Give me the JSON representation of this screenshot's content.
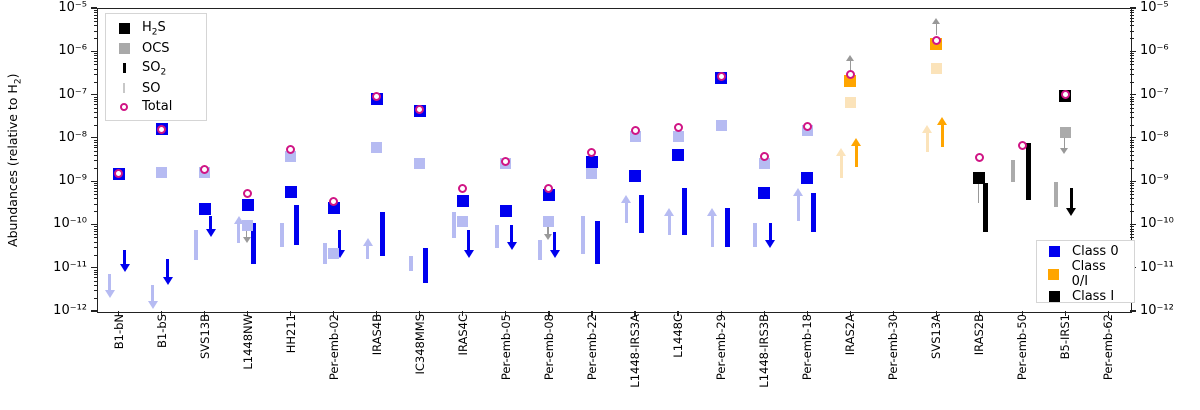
{
  "ylabel": "Abundances (relative to H2)",
  "ylabel_html_parts": {
    "pre": "Abundances (relative to H",
    "sub": "2",
    "post": ")"
  },
  "legend_species": {
    "items": [
      {
        "label": "H2S",
        "label_pre": "H",
        "label_sub": "2",
        "label_post": "S",
        "marker": "square",
        "color": "#000000"
      },
      {
        "label": "OCS",
        "label_pre": "OCS",
        "label_sub": "",
        "label_post": "",
        "marker": "square",
        "color": "#a9a9a9"
      },
      {
        "label": "SO2",
        "label_pre": "SO",
        "label_sub": "2",
        "label_post": "",
        "marker": "bar",
        "color": "#000000"
      },
      {
        "label": "SO",
        "label_pre": "SO",
        "label_sub": "",
        "label_post": "",
        "marker": "bar-thin",
        "color": "#c8c8c8"
      },
      {
        "label": "Total",
        "label_pre": "Total",
        "label_sub": "",
        "label_post": "",
        "marker": "ring",
        "color": "#d01585"
      }
    ]
  },
  "legend_classes": {
    "items": [
      {
        "label": "Class 0",
        "color": "#0000ee"
      },
      {
        "label": "Class 0/I",
        "color": "#ffa500"
      },
      {
        "label": "Class I",
        "color": "#000000"
      }
    ]
  },
  "chart_data": {
    "type": "scatter",
    "yscale": "log",
    "ylim": [
      1e-12,
      1e-05
    ],
    "ytick_exponents": [
      -5,
      -6,
      -7,
      -8,
      -9,
      -10,
      -11,
      -12
    ],
    "grid": false,
    "legend_positions": {
      "species": "upper-left",
      "classes": "lower-right"
    },
    "palette": {
      "0": {
        "solid": "#0000ee",
        "light": "#b6bbf2"
      },
      "0/I": {
        "solid": "#ffa500",
        "light": "#fbe3ba"
      },
      "I": {
        "solid": "#000000",
        "light": "#ababab"
      },
      "gray": "#999999",
      "total_ring": "#d01585"
    },
    "sources": [
      {
        "name": "B1-bN",
        "cls": "0",
        "markers": [
          {
            "sp": "H2S",
            "t": "sq",
            "v": 1.5e-09
          },
          {
            "sp": "Total",
            "t": "circ",
            "v": 1.5e-09
          },
          {
            "sp": "SO2",
            "t": "arr",
            "dir": "down",
            "from": 2.6e-11,
            "to": 8e-12
          },
          {
            "sp": "SO",
            "t": "arr",
            "dir": "down",
            "from": 7e-12,
            "to": 2e-12
          }
        ]
      },
      {
        "name": "B1-bS",
        "cls": "0",
        "markers": [
          {
            "sp": "H2S",
            "t": "sq",
            "v": 1.6e-08
          },
          {
            "sp": "Total",
            "t": "circ",
            "v": 1.6e-08
          },
          {
            "sp": "OCS",
            "t": "sq",
            "v": 1.6e-09
          },
          {
            "sp": "SO2",
            "t": "arr",
            "dir": "down",
            "from": 1.6e-11,
            "to": 4e-12
          },
          {
            "sp": "SO",
            "t": "arr",
            "dir": "down",
            "from": 4e-12,
            "to": 1.1e-12
          }
        ]
      },
      {
        "name": "SVS13B",
        "cls": "0",
        "markers": [
          {
            "sp": "Total",
            "t": "circ",
            "v": 1.9e-09
          },
          {
            "sp": "OCS",
            "t": "sq",
            "v": 1.6e-09
          },
          {
            "sp": "H2S",
            "t": "sq",
            "v": 2.3e-10
          },
          {
            "sp": "SO2",
            "t": "arr",
            "dir": "down",
            "from": 1.6e-10,
            "to": 5e-11
          },
          {
            "sp": "SO",
            "t": "bar",
            "hi": 7.5e-11,
            "lo": 1.5e-11
          }
        ]
      },
      {
        "name": "L1448NW",
        "cls": "0",
        "markers": [
          {
            "sp": "Total",
            "t": "circ",
            "v": 5.3e-10
          },
          {
            "sp": "H2S",
            "t": "sq",
            "v": 2.8e-10
          },
          {
            "sp": "OCS",
            "t": "sq",
            "v": 9.5e-11
          },
          {
            "sp": "OCS",
            "t": "arr",
            "dir": "down",
            "gray": true,
            "from": 9.5e-11,
            "to": 3.7e-11
          },
          {
            "sp": "SO",
            "t": "arr",
            "dir": "up",
            "from": 3.7e-11,
            "to": 1.6e-10
          },
          {
            "sp": "SO2",
            "t": "bar",
            "hi": 1.1e-10,
            "lo": 1.2e-11
          }
        ]
      },
      {
        "name": "HH211",
        "cls": "0",
        "markers": [
          {
            "sp": "Total",
            "t": "circ",
            "v": 5.3e-09
          },
          {
            "sp": "OCS",
            "t": "sq",
            "v": 3.8e-09
          },
          {
            "sp": "H2S",
            "t": "sq",
            "v": 5.6e-10
          },
          {
            "sp": "SO2",
            "t": "bar",
            "hi": 2.8e-10,
            "lo": 3.4e-11
          },
          {
            "sp": "SO",
            "t": "bar",
            "hi": 1.1e-10,
            "lo": 3e-11
          }
        ]
      },
      {
        "name": "Per-emb-02",
        "cls": "0",
        "markers": [
          {
            "sp": "Total",
            "t": "circ",
            "v": 3.3e-10
          },
          {
            "sp": "H2S",
            "t": "sq",
            "v": 2.4e-10
          },
          {
            "sp": "OCS",
            "t": "sq",
            "v": 2.1e-11
          },
          {
            "sp": "SO2",
            "t": "arr",
            "dir": "down",
            "from": 7.3e-11,
            "to": 1.7e-11
          },
          {
            "sp": "SO",
            "t": "bar",
            "hi": 3.7e-11,
            "lo": 1.2e-11
          }
        ]
      },
      {
        "name": "IRAS4B",
        "cls": "0",
        "markers": [
          {
            "sp": "H2S",
            "t": "sq",
            "v": 8e-08
          },
          {
            "sp": "Total",
            "t": "circ",
            "v": 9e-08
          },
          {
            "sp": "OCS",
            "t": "sq",
            "v": 5.9e-09
          },
          {
            "sp": "SO2",
            "t": "bar",
            "hi": 1.9e-10,
            "lo": 1.9e-11
          },
          {
            "sp": "SO",
            "t": "arr",
            "dir": "up",
            "from": 1.6e-11,
            "to": 4.8e-11
          }
        ]
      },
      {
        "name": "IC348MMS",
        "cls": "0",
        "markers": [
          {
            "sp": "H2S",
            "t": "sq",
            "v": 4.2e-08
          },
          {
            "sp": "Total",
            "t": "circ",
            "v": 4.5e-08
          },
          {
            "sp": "OCS",
            "t": "sq",
            "v": 2.6e-09
          },
          {
            "sp": "SO",
            "t": "bar",
            "hi": 1.9e-11,
            "lo": 8.5e-12
          },
          {
            "sp": "SO2",
            "t": "bar",
            "hi": 2.9e-11,
            "lo": 4.4e-12
          }
        ]
      },
      {
        "name": "IRAS4C",
        "cls": "0",
        "markers": [
          {
            "sp": "Total",
            "t": "circ",
            "v": 6.9e-10
          },
          {
            "sp": "H2S",
            "t": "sq",
            "v": 3.5e-10
          },
          {
            "sp": "OCS",
            "t": "sq",
            "v": 1.2e-10
          },
          {
            "sp": "SO",
            "t": "bar",
            "hi": 1.9e-10,
            "lo": 4.8e-11
          },
          {
            "sp": "SO2",
            "t": "arr",
            "dir": "down",
            "from": 7.3e-11,
            "to": 1.7e-11
          }
        ]
      },
      {
        "name": "Per-emb-05",
        "cls": "0",
        "markers": [
          {
            "sp": "Total",
            "t": "circ",
            "v": 2.9e-09
          },
          {
            "sp": "OCS",
            "t": "sq",
            "v": 2.5e-09
          },
          {
            "sp": "H2S",
            "t": "sq",
            "v": 2e-10
          },
          {
            "sp": "SO",
            "t": "bar",
            "hi": 9.5e-11,
            "lo": 2.8e-11
          },
          {
            "sp": "SO2",
            "t": "arr",
            "dir": "down",
            "from": 9.5e-11,
            "to": 2.5e-11
          }
        ]
      },
      {
        "name": "Per-emb-08",
        "cls": "0",
        "markers": [
          {
            "sp": "Total",
            "t": "circ",
            "v": 6.9e-10
          },
          {
            "sp": "H2S",
            "t": "sq",
            "v": 4.7e-10
          },
          {
            "sp": "OCS",
            "t": "sq",
            "v": 1.2e-10
          },
          {
            "sp": "OCS",
            "t": "arr",
            "dir": "down",
            "gray": true,
            "from": 1.2e-10,
            "to": 4.3e-11
          },
          {
            "sp": "SO",
            "t": "bar",
            "hi": 4.3e-11,
            "lo": 1.5e-11
          },
          {
            "sp": "SO2",
            "t": "arr",
            "dir": "down",
            "from": 6.6e-11,
            "to": 1.7e-11
          }
        ]
      },
      {
        "name": "Per-emb-22",
        "cls": "0",
        "markers": [
          {
            "sp": "Total",
            "t": "circ",
            "v": 4.5e-09
          },
          {
            "sp": "H2S",
            "t": "sq",
            "v": 2.8e-09
          },
          {
            "sp": "OCS",
            "t": "sq",
            "v": 1.5e-09
          },
          {
            "sp": "SO",
            "t": "bar",
            "hi": 1.6e-10,
            "lo": 2.1e-11
          },
          {
            "sp": "SO2",
            "t": "bar",
            "hi": 1.2e-10,
            "lo": 1.2e-11
          }
        ]
      },
      {
        "name": "L1448-IRS3A",
        "cls": "0",
        "markers": [
          {
            "sp": "Total",
            "t": "circ",
            "v": 1.5e-08
          },
          {
            "sp": "OCS",
            "t": "sq",
            "v": 1.1e-08
          },
          {
            "sp": "H2S",
            "t": "sq",
            "v": 1.3e-09
          },
          {
            "sp": "SO",
            "t": "arr",
            "dir": "up",
            "from": 1.1e-10,
            "to": 4.7e-10
          },
          {
            "sp": "SO2",
            "t": "bar",
            "hi": 4.7e-10,
            "lo": 6.3e-11
          }
        ]
      },
      {
        "name": "L1448C",
        "cls": "0",
        "markers": [
          {
            "sp": "Total",
            "t": "circ",
            "v": 1.7e-08
          },
          {
            "sp": "OCS",
            "t": "sq",
            "v": 1.1e-08
          },
          {
            "sp": "H2S",
            "t": "sq",
            "v": 4e-09
          },
          {
            "sp": "SO",
            "t": "arr",
            "dir": "up",
            "from": 5.6e-11,
            "to": 2.4e-10
          },
          {
            "sp": "SO2",
            "t": "bar",
            "hi": 6.9e-10,
            "lo": 5.6e-11
          }
        ]
      },
      {
        "name": "Per-emb-29",
        "cls": "0",
        "markers": [
          {
            "sp": "H2S",
            "t": "sq",
            "v": 2.4e-07
          },
          {
            "sp": "Total",
            "t": "circ",
            "v": 2.6e-07
          },
          {
            "sp": "OCS",
            "t": "sq",
            "v": 1.9e-08
          },
          {
            "sp": "SO",
            "t": "arr",
            "dir": "up",
            "from": 3e-11,
            "to": 2.4e-10
          },
          {
            "sp": "SO2",
            "t": "bar",
            "hi": 2.4e-10,
            "lo": 3e-11
          }
        ]
      },
      {
        "name": "L1448-IRS3B",
        "cls": "0",
        "markers": [
          {
            "sp": "Total",
            "t": "circ",
            "v": 3.8e-09
          },
          {
            "sp": "OCS",
            "t": "sq",
            "v": 2.6e-09
          },
          {
            "sp": "H2S",
            "t": "sq",
            "v": 5.3e-10
          },
          {
            "sp": "SO",
            "t": "bar",
            "hi": 1.1e-10,
            "lo": 3e-11
          },
          {
            "sp": "SO2",
            "t": "arr",
            "dir": "down",
            "from": 1.1e-10,
            "to": 2.8e-11
          }
        ]
      },
      {
        "name": "Per-emb-18",
        "cls": "0",
        "markers": [
          {
            "sp": "Total",
            "t": "circ",
            "v": 1.8e-08
          },
          {
            "sp": "OCS",
            "t": "sq",
            "v": 1.5e-08
          },
          {
            "sp": "H2S",
            "t": "sq",
            "v": 1.2e-09
          },
          {
            "sp": "SO",
            "t": "arr",
            "dir": "up",
            "from": 1.2e-10,
            "to": 6.9e-10
          },
          {
            "sp": "SO2",
            "t": "bar",
            "hi": 5.3e-10,
            "lo": 6.6e-11
          }
        ]
      },
      {
        "name": "IRAS2A",
        "cls": "0/I",
        "markers": [
          {
            "sp": "Total",
            "t": "arr",
            "dir": "up",
            "gray": true,
            "from": 3.2e-07,
            "to": 8.3e-07
          },
          {
            "sp": "Total",
            "t": "circ",
            "v": 2.9e-07
          },
          {
            "sp": "H2S",
            "t": "sq",
            "v": 2.1e-07
          },
          {
            "sp": "OCS",
            "t": "sq",
            "v": 6.6e-08
          },
          {
            "sp": "SO",
            "t": "arr",
            "dir": "up",
            "from": 1.2e-09,
            "to": 5.9e-09
          },
          {
            "sp": "SO2",
            "t": "arr",
            "dir": "up",
            "from": 2.1e-09,
            "to": 9.9e-09
          }
        ]
      },
      {
        "name": "Per-emb-30",
        "cls": "0",
        "markers": []
      },
      {
        "name": "SVS13A",
        "cls": "0/I",
        "markers": [
          {
            "sp": "Total",
            "t": "arr",
            "dir": "up",
            "gray": true,
            "from": 2.4e-06,
            "to": 5.9e-06
          },
          {
            "sp": "Total",
            "t": "circ",
            "v": 1.8e-06
          },
          {
            "sp": "H2S",
            "t": "sq",
            "v": 1.5e-06
          },
          {
            "sp": "OCS",
            "t": "sq",
            "v": 3.9e-07
          },
          {
            "sp": "SO",
            "t": "arr",
            "dir": "up",
            "from": 4.7e-09,
            "to": 2e-08
          },
          {
            "sp": "SO2",
            "t": "arr",
            "dir": "up",
            "from": 6.1e-09,
            "to": 3e-08
          }
        ]
      },
      {
        "name": "IRAS2B",
        "cls": "I",
        "markers": [
          {
            "sp": "Total",
            "t": "circ",
            "v": 3.6e-09
          },
          {
            "sp": "H2S",
            "t": "sq",
            "v": 1.2e-09
          },
          {
            "sp": "SO",
            "t": "arr",
            "dir": "up",
            "gray": true,
            "from": 3.2e-10,
            "to": 1.2e-09
          },
          {
            "sp": "SO2",
            "t": "bar",
            "hi": 9e-10,
            "lo": 6.6e-11
          }
        ]
      },
      {
        "name": "Per-emb-50",
        "cls": "I",
        "markers": [
          {
            "sp": "Total",
            "t": "circ",
            "v": 6.6e-09
          },
          {
            "sp": "SO2",
            "t": "bar",
            "hi": 7.7e-09,
            "lo": 3.6e-10
          },
          {
            "sp": "SO",
            "t": "bar",
            "hi": 3e-09,
            "lo": 9.5e-10
          }
        ]
      },
      {
        "name": "B5-IRS1",
        "cls": "I",
        "markers": [
          {
            "sp": "H2S",
            "t": "sq",
            "v": 9.5e-08
          },
          {
            "sp": "Total",
            "t": "circ",
            "v": 1e-07
          },
          {
            "sp": "OCS",
            "t": "sq",
            "v": 1.3e-08
          },
          {
            "sp": "OCS",
            "t": "arr",
            "dir": "down",
            "gray": true,
            "from": 1.3e-08,
            "to": 4.3e-09
          },
          {
            "sp": "SO",
            "t": "bar",
            "hi": 9.5e-10,
            "lo": 2.5e-10
          },
          {
            "sp": "SO2",
            "t": "arr",
            "dir": "down",
            "from": 6.9e-10,
            "to": 1.6e-10
          }
        ]
      },
      {
        "name": "Per-emb-62",
        "cls": "0",
        "markers": []
      }
    ]
  }
}
